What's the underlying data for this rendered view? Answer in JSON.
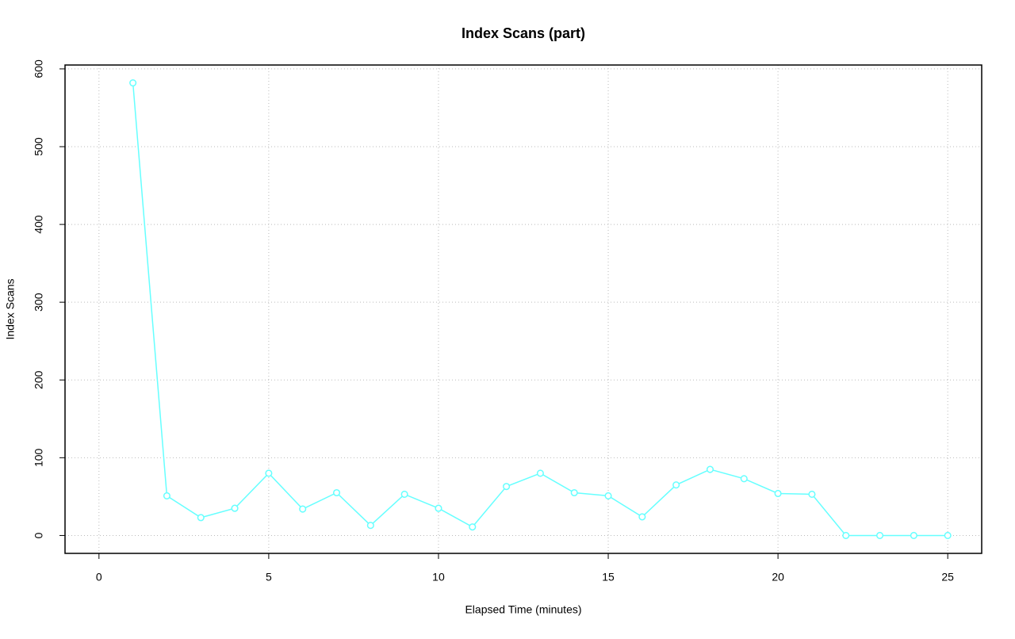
{
  "chart_data": {
    "type": "line",
    "title": "Index Scans (part)",
    "x_label": "Elapsed Time (minutes)",
    "y_label": "Index Scans",
    "x": [
      1,
      2,
      3,
      4,
      5,
      6,
      7,
      8,
      9,
      10,
      11,
      12,
      13,
      14,
      15,
      16,
      17,
      18,
      19,
      20,
      21,
      22,
      23,
      24,
      25
    ],
    "series": [
      {
        "name": "Index Scans",
        "color": "#66ffff",
        "values": [
          582,
          51,
          23,
          35,
          80,
          34,
          55,
          13,
          53,
          35,
          11,
          63,
          80,
          55,
          51,
          24,
          65,
          85,
          73,
          54,
          53,
          0,
          0,
          0,
          0
        ]
      }
    ],
    "xlim": [
      -1,
      26
    ],
    "xticks": [
      0,
      5,
      10,
      15,
      20,
      25
    ],
    "ylim": [
      -23,
      605
    ],
    "yticks": [
      0,
      100,
      200,
      300,
      400,
      500,
      600
    ],
    "grid": true
  }
}
